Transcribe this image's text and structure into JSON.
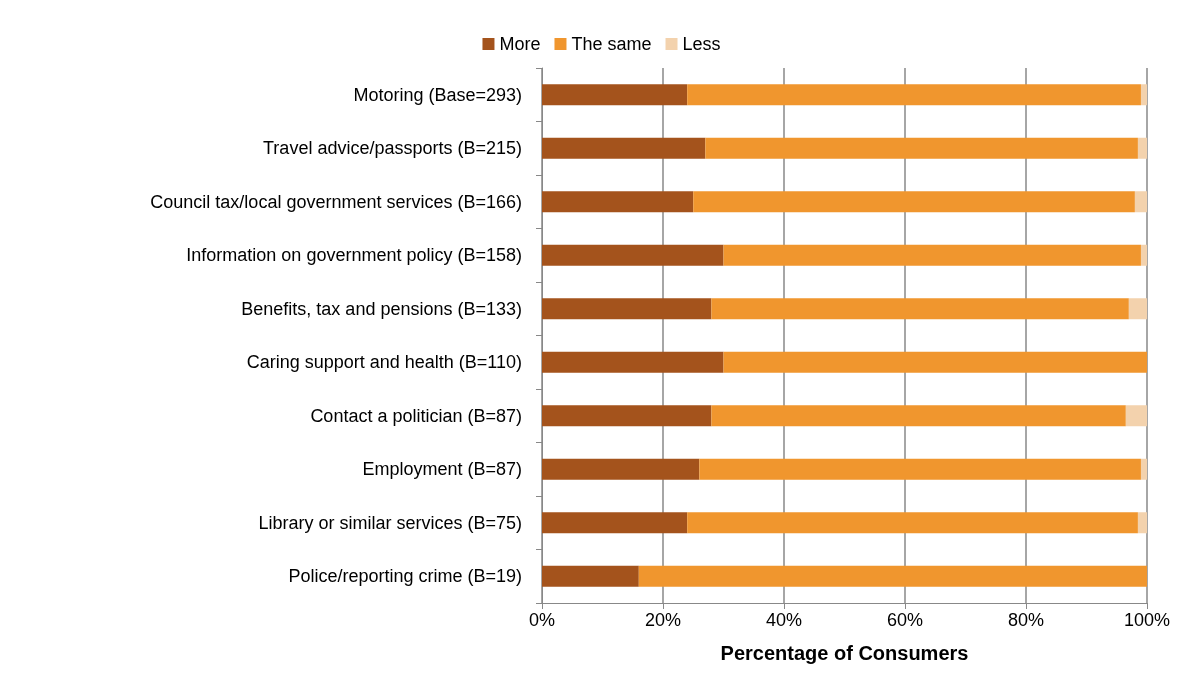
{
  "chart_data": {
    "type": "bar",
    "orientation": "horizontal",
    "stacked": true,
    "xlabel": "Percentage of Consumers",
    "categories": [
      "Motoring (Base=293)",
      "Travel advice/passports (B=215)",
      "Council tax/local government services (B=166)",
      "Information on government policy (B=158)",
      "Benefits, tax and pensions (B=133)",
      "Caring support and health (B=110)",
      "Contact a politician (B=87)",
      "Employment (B=87)",
      "Library or similar services (B=75)",
      "Police/reporting crime (B=19)"
    ],
    "series": [
      {
        "name": "More",
        "color": "#a4531c",
        "values": [
          24,
          27,
          25,
          30,
          28,
          30,
          28,
          26,
          24,
          16
        ]
      },
      {
        "name": "The same",
        "color": "#f0962e",
        "values": [
          75,
          71.5,
          73,
          69,
          69,
          70,
          68.5,
          73,
          74.5,
          84
        ]
      },
      {
        "name": "Less",
        "color": "#f3d2ad",
        "values": [
          1,
          1.5,
          2,
          1,
          3,
          0,
          3.5,
          1,
          1.5,
          0
        ]
      }
    ],
    "xlim": [
      0,
      100
    ],
    "xticks": [
      {
        "value": 0,
        "label": "0%"
      },
      {
        "value": 20,
        "label": "20%"
      },
      {
        "value": 40,
        "label": "40%"
      },
      {
        "value": 60,
        "label": "60%"
      },
      {
        "value": 80,
        "label": "80%"
      },
      {
        "value": 100,
        "label": "100%"
      }
    ],
    "grid": "x",
    "legend": "top"
  }
}
